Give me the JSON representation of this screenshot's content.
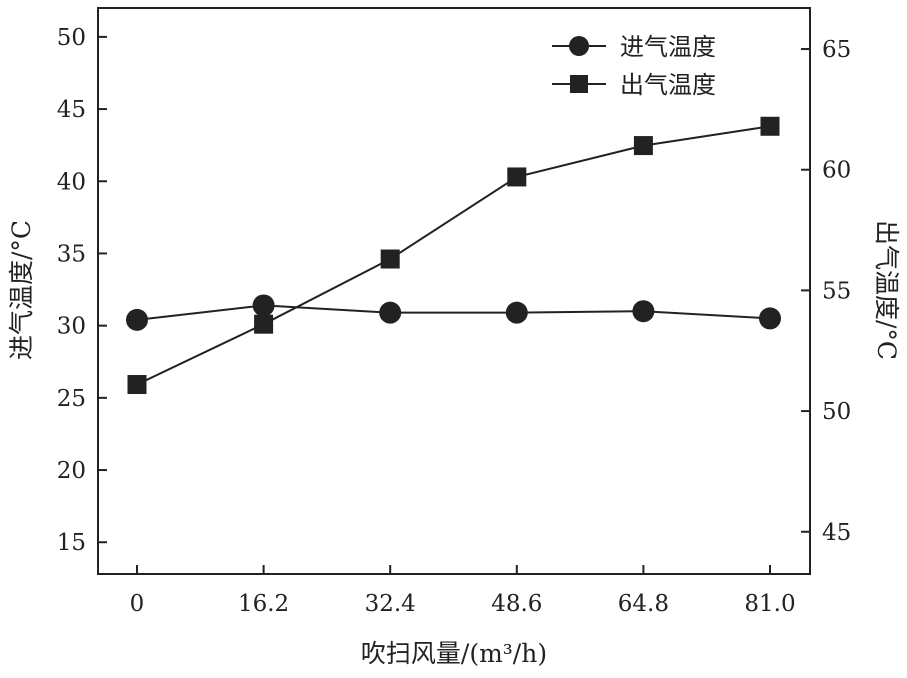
{
  "chart_data": {
    "type": "line",
    "x": [
      0,
      16.2,
      32.4,
      48.6,
      64.8,
      81.0
    ],
    "x_tick_labels": [
      "0",
      "16.2",
      "32.4",
      "48.6",
      "64.8",
      "81.0"
    ],
    "xlabel": "吹扫风量/(m³/h)",
    "ylabel_left": "进气温度/°C",
    "ylabel_right": "出气温度/°C",
    "ylim_left": [
      12.8,
      52
    ],
    "ylim_right": [
      43.25,
      66.7
    ],
    "yticks_left": [
      15,
      20,
      25,
      30,
      35,
      40,
      45,
      50
    ],
    "yticks_right": [
      45,
      50,
      55,
      60,
      65
    ],
    "grid": false,
    "legend": "top-right",
    "series": [
      {
        "name": "进气温度",
        "axis": "left",
        "marker": "circle",
        "color": "#222222",
        "values": [
          30.4,
          31.4,
          30.9,
          30.9,
          31.0,
          30.5
        ]
      },
      {
        "name": "出气温度",
        "axis": "right",
        "marker": "square",
        "color": "#222222",
        "values": [
          51.1,
          53.6,
          56.3,
          59.7,
          61.0,
          61.8
        ]
      }
    ]
  }
}
